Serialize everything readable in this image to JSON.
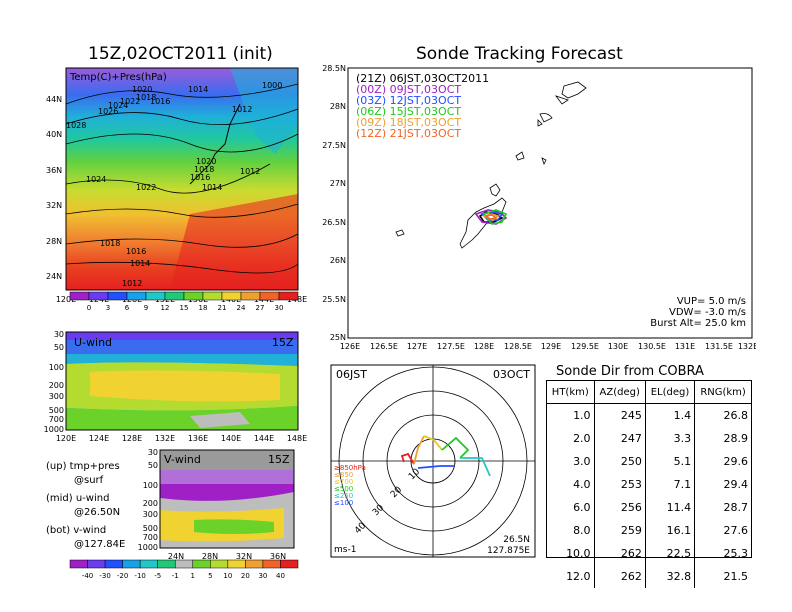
{
  "left_panel": {
    "title": "15Z,02OCT2011 (init)",
    "map_label": "Temp(C)+Pres(hPa)",
    "lat_ticks": [
      "44N",
      "40N",
      "36N",
      "32N",
      "28N",
      "24N"
    ],
    "lon_ticks": [
      "120E",
      "124E",
      "128E",
      "132E",
      "136E",
      "140E",
      "144E",
      "148E"
    ],
    "isobar_labels": [
      "1000",
      "1012",
      "1014",
      "1016",
      "1018",
      "1020",
      "1022",
      "1024",
      "1026",
      "1028",
      "1018",
      "1016",
      "1014",
      "1012",
      "1020",
      "1018",
      "1016",
      "1014",
      "1012",
      "1024",
      "1022",
      "1028"
    ],
    "colorbar_ticks": [
      "0",
      "3",
      "6",
      "9",
      "12",
      "15",
      "18",
      "21",
      "24",
      "27",
      "30"
    ],
    "colorbar_colors": [
      "#a020c8",
      "#6a3cf0",
      "#2050ff",
      "#18a0e8",
      "#20c8c8",
      "#20c878",
      "#6ad228",
      "#b4dc30",
      "#f0d230",
      "#f0a030",
      "#f06428",
      "#e62020"
    ]
  },
  "u_panel": {
    "label": "U-wind",
    "time": "15Z",
    "p_ticks": [
      "30",
      "50",
      "100",
      "200",
      "300",
      "500",
      "700",
      "1000"
    ],
    "lon_ticks": [
      "120E",
      "124E",
      "128E",
      "132E",
      "136E",
      "140E",
      "144E",
      "148E"
    ]
  },
  "v_panel": {
    "label": "V-wind",
    "time": "15Z",
    "p_ticks": [
      "30",
      "50",
      "100",
      "200",
      "300",
      "500",
      "700",
      "1000"
    ],
    "lat_ticks": [
      "24N",
      "28N",
      "32N",
      "36N"
    ]
  },
  "legend_text": {
    "up": "(up) tmp+pres",
    "up2": "@surf",
    "mid": "(mid) u-wind",
    "mid2": "@26.50N",
    "bot": "(bot) v-wind",
    "bot2": "@127.84E"
  },
  "wind_colorbar": {
    "ticks": [
      "-40",
      "-30",
      "-20",
      "-10",
      "-5",
      "-1",
      "1",
      "5",
      "10",
      "20",
      "30",
      "40"
    ],
    "colors": [
      "#a020c8",
      "#6a3cf0",
      "#2050ff",
      "#18a0e8",
      "#20c8c8",
      "#20c878",
      "#bdbdbd",
      "#6ad228",
      "#b4dc30",
      "#f0d230",
      "#f0a030",
      "#f06428",
      "#e62020"
    ]
  },
  "track_panel": {
    "title": "Sonde Tracking Forecast",
    "entries": [
      {
        "text": "(21Z) 06JST,03OCT2011",
        "color": "#000000"
      },
      {
        "text": "(00Z) 09JST,03OCT",
        "color": "#a020c8"
      },
      {
        "text": "(03Z) 12JST,03OCT",
        "color": "#2050ff"
      },
      {
        "text": "(06Z) 15JST,03OCT",
        "color": "#20c820"
      },
      {
        "text": "(09Z) 18JST,03OCT",
        "color": "#f0a030"
      },
      {
        "text": "(12Z) 21JST,03OCT",
        "color": "#f06428"
      }
    ],
    "vup": "VUP= 5.0 m/s",
    "vdw": "VDW= -3.0 m/s",
    "burst": "Burst Alt= 25.0 km",
    "lat_ticks": [
      "28.5N",
      "28N",
      "27.5N",
      "27N",
      "26.5N",
      "26N",
      "25.5N",
      "25N"
    ],
    "lon_ticks": [
      "126E",
      "126.5E",
      "127E",
      "127.5E",
      "128E",
      "128.5E",
      "129E",
      "129.5E",
      "130E",
      "130.5E",
      "131E",
      "131.5E",
      "132E"
    ]
  },
  "polar_panel": {
    "left_label": "06JST",
    "right_label": "03OCT",
    "ring_labels": [
      "10",
      "20",
      "30",
      "40"
    ],
    "levels": [
      {
        "text": "≥850hPa",
        "color": "#e62020"
      },
      {
        "text": "≤850",
        "color": "#f0a030"
      },
      {
        "text": "≤700",
        "color": "#e6c820"
      },
      {
        "text": "≤500",
        "color": "#20c820"
      },
      {
        "text": "≤250",
        "color": "#20c8c8"
      },
      {
        "text": "≤100",
        "color": "#2050ff"
      }
    ],
    "unit": "ms-1",
    "lat": "26.5N",
    "lon": "127.875E"
  },
  "cobra_table": {
    "title": "Sonde Dir from COBRA",
    "headers": [
      "HT(km)",
      "AZ(deg)",
      "EL(deg)",
      "RNG(km)"
    ],
    "rows": [
      [
        "1.0",
        "245",
        "1.4",
        "26.8"
      ],
      [
        "2.0",
        "247",
        "3.3",
        "28.9"
      ],
      [
        "3.0",
        "250",
        "5.1",
        "29.6"
      ],
      [
        "4.0",
        "253",
        "7.1",
        "29.4"
      ],
      [
        "6.0",
        "256",
        "11.4",
        "28.7"
      ],
      [
        "8.0",
        "259",
        "16.1",
        "27.6"
      ],
      [
        "10.0",
        "262",
        "22.5",
        "25.3"
      ],
      [
        "12.0",
        "262",
        "32.8",
        "21.5"
      ]
    ]
  }
}
